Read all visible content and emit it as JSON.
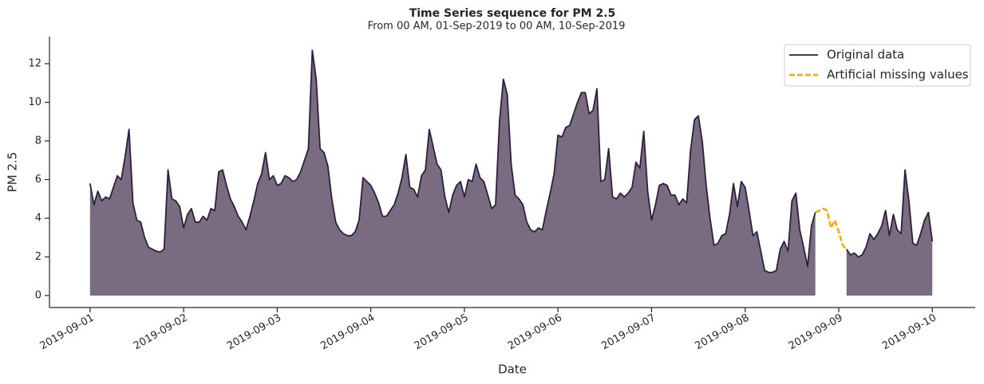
{
  "chart_data": {
    "type": "area-line",
    "title": "Time Series sequence for PM 2.5",
    "subtitle": "From 00 AM, 01-Sep-2019 to 00 AM, 10-Sep-2019",
    "xlabel": "Date",
    "ylabel": "PM 2.5",
    "x": [
      0,
      1,
      2,
      3,
      4,
      5,
      6,
      7,
      8,
      9,
      10,
      11,
      12,
      13,
      14,
      15,
      16,
      17,
      18,
      19,
      20,
      21,
      22,
      23,
      24,
      25,
      26,
      27,
      28,
      29,
      30,
      31,
      32,
      33,
      34,
      35,
      36,
      37,
      38,
      39,
      40,
      41,
      42,
      43,
      44,
      45,
      46,
      47,
      48,
      49,
      50,
      51,
      52,
      53,
      54,
      55,
      56,
      57,
      58,
      59,
      60,
      61,
      62,
      63,
      64,
      65,
      66,
      67,
      68,
      69,
      70,
      71,
      72,
      73,
      74,
      75,
      76,
      77,
      78,
      79,
      80,
      81,
      82,
      83,
      84,
      85,
      86,
      87,
      88,
      89,
      90,
      91,
      92,
      93,
      94,
      95,
      96,
      97,
      98,
      99,
      100,
      101,
      102,
      103,
      104,
      105,
      106,
      107,
      108,
      109,
      110,
      111,
      112,
      113,
      114,
      115,
      116,
      117,
      118,
      119,
      120,
      121,
      122,
      123,
      124,
      125,
      126,
      127,
      128,
      129,
      130,
      131,
      132,
      133,
      134,
      135,
      136,
      137,
      138,
      139,
      140,
      141,
      142,
      143,
      144,
      145,
      146,
      147,
      148,
      149,
      150,
      151,
      152,
      153,
      154,
      155,
      156,
      157,
      158,
      159,
      160,
      161,
      162,
      163,
      164,
      165,
      166,
      167,
      168,
      169,
      170,
      171,
      172,
      173,
      174,
      175,
      176,
      177,
      178,
      179,
      180,
      181,
      182,
      183,
      184,
      185,
      186,
      187,
      188,
      189,
      190,
      191,
      192,
      193,
      194,
      195,
      196,
      197,
      198,
      199,
      200,
      201,
      202,
      203,
      204,
      205,
      206,
      207,
      208,
      209,
      210,
      211,
      212,
      213,
      214,
      215,
      216
    ],
    "series": [
      {
        "name": "Original data",
        "color": "#2e1f3e",
        "fill": "#7a6c80",
        "values": [
          5.8,
          4.7,
          5.4,
          4.9,
          5.1,
          5.0,
          5.6,
          6.2,
          6.0,
          7.2,
          8.6,
          4.8,
          3.9,
          3.8,
          3.0,
          2.5,
          2.4,
          2.3,
          2.25,
          2.4,
          6.5,
          5.0,
          4.9,
          4.6,
          3.5,
          4.2,
          4.5,
          3.8,
          3.8,
          4.1,
          3.9,
          4.5,
          4.4,
          6.4,
          6.5,
          5.7,
          5.0,
          4.6,
          4.1,
          3.8,
          3.4,
          4.1,
          4.9,
          5.8,
          6.3,
          7.4,
          6.0,
          6.2,
          5.7,
          5.8,
          6.2,
          6.1,
          5.9,
          6.0,
          6.4,
          7.0,
          7.6,
          12.7,
          11.2,
          7.6,
          7.4,
          6.7,
          5.0,
          3.8,
          3.4,
          3.2,
          3.1,
          3.1,
          3.3,
          3.9,
          6.1,
          5.9,
          5.7,
          5.3,
          4.8,
          4.1,
          4.1,
          4.4,
          4.7,
          5.3,
          6.1,
          7.3,
          5.6,
          5.5,
          5.1,
          6.2,
          6.5,
          8.6,
          7.7,
          6.8,
          6.5,
          5.1,
          4.3,
          5.2,
          5.7,
          5.9,
          5.1,
          6.0,
          5.9,
          6.8,
          6.1,
          5.9,
          5.2,
          4.5,
          4.7,
          9.0,
          11.2,
          10.4,
          6.8,
          5.2,
          5.0,
          4.7,
          3.8,
          3.4,
          3.3,
          3.5,
          3.4,
          4.4,
          5.3,
          6.3,
          8.3,
          8.2,
          8.7,
          8.8,
          9.4,
          10.0,
          10.5,
          10.5,
          9.4,
          9.6,
          10.7,
          5.9,
          6.0,
          7.6,
          5.1,
          5.0,
          5.3,
          5.1,
          5.3,
          5.6,
          6.9,
          6.6,
          8.5,
          5.4,
          3.9,
          4.7,
          5.7,
          5.8,
          5.7,
          5.2,
          5.2,
          4.7,
          5.0,
          4.8,
          7.5,
          9.1,
          9.3,
          8.0,
          5.7,
          4.0,
          2.6,
          2.7,
          3.1,
          3.2,
          4.2,
          5.8,
          4.6,
          5.9,
          5.6,
          4.4,
          3.1,
          3.3,
          2.3,
          1.3,
          1.2,
          1.2,
          1.3,
          2.4,
          2.8,
          2.3,
          4.9,
          5.3,
          3.4,
          2.5,
          1.5,
          3.6,
          4.3,
          null,
          null,
          null,
          null,
          null,
          null,
          null,
          2.4,
          2.1,
          2.2,
          2.0,
          2.1,
          2.5,
          3.2,
          2.9,
          3.2,
          3.6,
          4.4,
          3.1,
          4.2,
          3.4,
          3.2,
          6.5,
          4.9,
          2.7,
          2.6,
          3.2,
          3.9,
          4.3,
          2.8
        ]
      },
      {
        "name": "Artificial missing values",
        "color": "#ffa500",
        "dashed": true,
        "x": [
          186,
          187,
          188,
          189,
          190,
          191,
          192,
          193,
          194
        ],
        "values": [
          4.3,
          4.4,
          4.5,
          4.4,
          3.5,
          3.9,
          3.3,
          2.6,
          2.4
        ]
      }
    ],
    "xlim": [
      -10.4,
      227
    ],
    "xticks": [
      {
        "value": 0,
        "label": "2019-09-01"
      },
      {
        "value": 24,
        "label": "2019-09-02"
      },
      {
        "value": 48,
        "label": "2019-09-03"
      },
      {
        "value": 72,
        "label": "2019-09-04"
      },
      {
        "value": 96,
        "label": "2019-09-05"
      },
      {
        "value": 120,
        "label": "2019-09-06"
      },
      {
        "value": 144,
        "label": "2019-09-07"
      },
      {
        "value": 168,
        "label": "2019-09-08"
      },
      {
        "value": 192,
        "label": "2019-09-09"
      },
      {
        "value": 216,
        "label": "2019-09-10"
      }
    ],
    "ylim": [
      -0.62,
      13.4
    ],
    "yticks": [
      0,
      2,
      4,
      6,
      8,
      10,
      12
    ],
    "grid": false,
    "legend": "upper right"
  }
}
